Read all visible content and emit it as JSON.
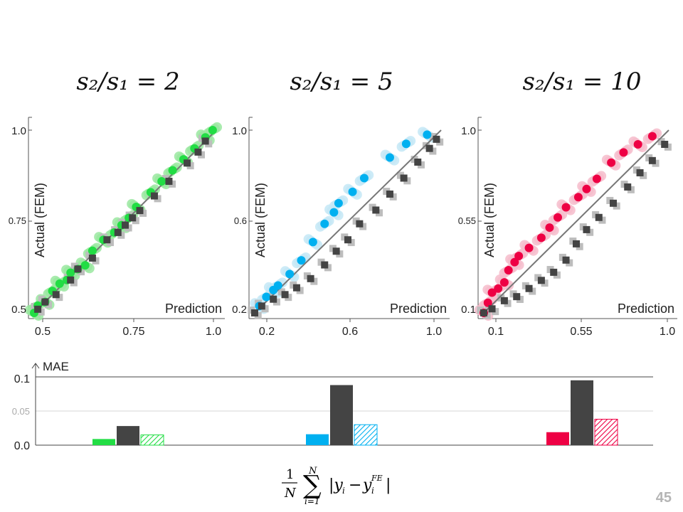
{
  "panels": [
    {
      "title": "s₂/s₁ = 2",
      "ylabel": "Actual (FEM)",
      "xlabel": "Prediction",
      "ticks": [
        "0.5",
        "0.75",
        "1.0"
      ],
      "accent": "#22dd44",
      "light": "#9ae8a0"
    },
    {
      "title": "s₂/s₁ = 5",
      "ylabel": "Actual (FEM)",
      "xlabel": "Prediction",
      "ticks": [
        "0.2",
        "0.6",
        "1.0"
      ],
      "accent": "#00b0f0",
      "light": "#c4e8f6"
    },
    {
      "title": "s₂/s₁ = 10",
      "ylabel": "Actual (FEM)",
      "xlabel": "Prediction",
      "ticks": [
        "0.1",
        "0.55",
        "1.0"
      ],
      "accent": "#ee0044",
      "light": "#f6bccb"
    }
  ],
  "mae": {
    "label": "MAE",
    "ticks": [
      "0.1",
      "0.05",
      "0.0"
    ],
    "formula": "(1/N) ∑ |yᵢ − yᵢᶠᴱ|, i = 1 … N"
  },
  "page_number": "45",
  "chart_data": [
    {
      "type": "scatter",
      "title": "s2/s1 = 2",
      "xlabel": "Prediction",
      "ylabel": "Actual (FEM)",
      "xlim": [
        0.5,
        1.0
      ],
      "ylim": [
        0.5,
        1.0
      ],
      "grid": false,
      "series": [
        {
          "values": [
            [
              0.5,
              0.5
            ],
            [
              0.51,
              0.52
            ],
            [
              0.53,
              0.53
            ],
            [
              0.55,
              0.56
            ],
            [
              0.57,
              0.58
            ],
            [
              0.59,
              0.59
            ],
            [
              0.6,
              0.61
            ],
            [
              0.62,
              0.62
            ],
            [
              0.64,
              0.63
            ],
            [
              0.66,
              0.67
            ],
            [
              0.69,
              0.7
            ],
            [
              0.72,
              0.72
            ],
            [
              0.74,
              0.74
            ],
            [
              0.76,
              0.76
            ],
            [
              0.78,
              0.79
            ],
            [
              0.82,
              0.83
            ],
            [
              0.85,
              0.86
            ],
            [
              0.88,
              0.89
            ],
            [
              0.91,
              0.92
            ],
            [
              0.94,
              0.95
            ],
            [
              0.97,
              0.98
            ],
            [
              0.99,
              1.0
            ]
          ]
        },
        {
          "values": [
            [
              0.51,
              0.51
            ],
            [
              0.53,
              0.53
            ],
            [
              0.56,
              0.55
            ],
            [
              0.6,
              0.59
            ],
            [
              0.62,
              0.62
            ],
            [
              0.66,
              0.65
            ],
            [
              0.7,
              0.7
            ],
            [
              0.73,
              0.72
            ],
            [
              0.75,
              0.74
            ],
            [
              0.77,
              0.76
            ],
            [
              0.79,
              0.78
            ],
            [
              0.83,
              0.82
            ],
            [
              0.87,
              0.86
            ],
            [
              0.92,
              0.91
            ],
            [
              0.95,
              0.94
            ],
            [
              0.97,
              0.97
            ]
          ]
        }
      ]
    },
    {
      "type": "scatter",
      "title": "s2/s1 = 5",
      "xlabel": "Prediction",
      "ylabel": "Actual (FEM)",
      "xlim": [
        0.2,
        1.0
      ],
      "ylim": [
        0.2,
        1.0
      ],
      "grid": false,
      "series": [
        {
          "values": [
            [
              0.22,
              0.23
            ],
            [
              0.25,
              0.27
            ],
            [
              0.28,
              0.3
            ],
            [
              0.3,
              0.32
            ],
            [
              0.35,
              0.37
            ],
            [
              0.4,
              0.43
            ],
            [
              0.45,
              0.51
            ],
            [
              0.5,
              0.59
            ],
            [
              0.54,
              0.64
            ],
            [
              0.56,
              0.68
            ],
            [
              0.62,
              0.73
            ],
            [
              0.67,
              0.79
            ],
            [
              0.78,
              0.88
            ],
            [
              0.85,
              0.94
            ],
            [
              0.94,
              0.98
            ]
          ]
        },
        {
          "values": [
            [
              0.2,
              0.2
            ],
            [
              0.23,
              0.23
            ],
            [
              0.28,
              0.26
            ],
            [
              0.33,
              0.28
            ],
            [
              0.38,
              0.31
            ],
            [
              0.44,
              0.35
            ],
            [
              0.5,
              0.41
            ],
            [
              0.55,
              0.47
            ],
            [
              0.6,
              0.52
            ],
            [
              0.65,
              0.59
            ],
            [
              0.72,
              0.65
            ],
            [
              0.78,
              0.72
            ],
            [
              0.84,
              0.79
            ],
            [
              0.9,
              0.86
            ],
            [
              0.95,
              0.92
            ],
            [
              0.98,
              0.96
            ]
          ]
        }
      ]
    },
    {
      "type": "scatter",
      "title": "s2/s1 = 10",
      "xlabel": "Prediction",
      "ylabel": "Actual (FEM)",
      "xlim": [
        0.1,
        1.0
      ],
      "ylim": [
        0.1,
        1.0
      ],
      "grid": false,
      "series": [
        {
          "values": [
            [
              0.1,
              0.1
            ],
            [
              0.12,
              0.15
            ],
            [
              0.14,
              0.2
            ],
            [
              0.17,
              0.22
            ],
            [
              0.2,
              0.25
            ],
            [
              0.22,
              0.31
            ],
            [
              0.25,
              0.35
            ],
            [
              0.27,
              0.38
            ],
            [
              0.32,
              0.42
            ],
            [
              0.38,
              0.47
            ],
            [
              0.42,
              0.52
            ],
            [
              0.46,
              0.57
            ],
            [
              0.5,
              0.62
            ],
            [
              0.56,
              0.67
            ],
            [
              0.6,
              0.71
            ],
            [
              0.65,
              0.76
            ],
            [
              0.72,
              0.84
            ],
            [
              0.78,
              0.89
            ],
            [
              0.85,
              0.93
            ],
            [
              0.92,
              0.97
            ]
          ]
        },
        {
          "values": [
            [
              0.1,
              0.1
            ],
            [
              0.14,
              0.12
            ],
            [
              0.2,
              0.16
            ],
            [
              0.26,
              0.18
            ],
            [
              0.32,
              0.22
            ],
            [
              0.38,
              0.26
            ],
            [
              0.44,
              0.3
            ],
            [
              0.5,
              0.36
            ],
            [
              0.55,
              0.44
            ],
            [
              0.6,
              0.51
            ],
            [
              0.66,
              0.57
            ],
            [
              0.73,
              0.64
            ],
            [
              0.8,
              0.72
            ],
            [
              0.86,
              0.79
            ],
            [
              0.92,
              0.85
            ],
            [
              0.98,
              0.93
            ]
          ]
        }
      ]
    },
    {
      "type": "bar",
      "ylabel": "MAE",
      "ylim": [
        0,
        0.1
      ],
      "grid": true,
      "categories": [
        "s2/s1 = 2",
        "s2/s1 = 5",
        "s2/s1 = 10"
      ],
      "series": [
        {
          "values": [
            0.009,
            0.016,
            0.019
          ]
        },
        {
          "values": [
            0.028,
            0.088,
            0.095
          ]
        },
        {
          "values": [
            0.015,
            0.03,
            0.038
          ]
        }
      ]
    }
  ]
}
